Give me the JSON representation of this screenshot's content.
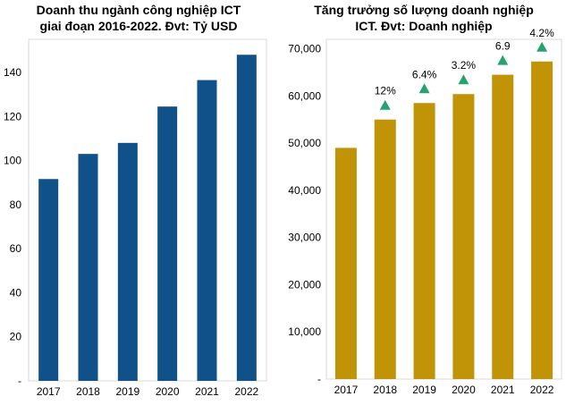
{
  "chart_data": [
    {
      "type": "bar",
      "title": "Doanh thu ngành công nghiệp ICT\ngiai đoạn 2016-2022. Đvt: Tỷ USD",
      "categories": [
        "2017",
        "2018",
        "2019",
        "2020",
        "2021",
        "2022"
      ],
      "values": [
        91.6,
        103,
        108,
        124.5,
        136.5,
        148
      ],
      "ylim": [
        0,
        155
      ],
      "yticks": [
        0,
        20,
        40,
        60,
        80,
        100,
        120,
        140
      ],
      "ytick_labels": [
        "-",
        "20",
        "40",
        "60",
        "80",
        "100",
        "120",
        "140"
      ],
      "bar_color": "#0f5188",
      "grid": false
    },
    {
      "type": "bar",
      "title": "Tăng trưởng số lượng doanh nghiệp\nICT. Đvt: Doanh nghiệp",
      "categories": [
        "2017",
        "2018",
        "2019",
        "2020",
        "2021",
        "2022"
      ],
      "values": [
        49000,
        55000,
        58500,
        60400,
        64500,
        67300
      ],
      "growth_labels": [
        "",
        "12%",
        "6.4%",
        "3.2%",
        "6.9",
        "4.2%"
      ],
      "ylim": [
        0,
        72000
      ],
      "yticks": [
        0,
        10000,
        20000,
        30000,
        40000,
        50000,
        60000,
        70000
      ],
      "ytick_labels": [
        "-",
        "10,000",
        "20,000",
        "30,000",
        "40,000",
        "50,000",
        "60,000",
        "70,000"
      ],
      "bar_color": "#c09406",
      "marker_color": "#25a36f",
      "grid": false
    }
  ]
}
